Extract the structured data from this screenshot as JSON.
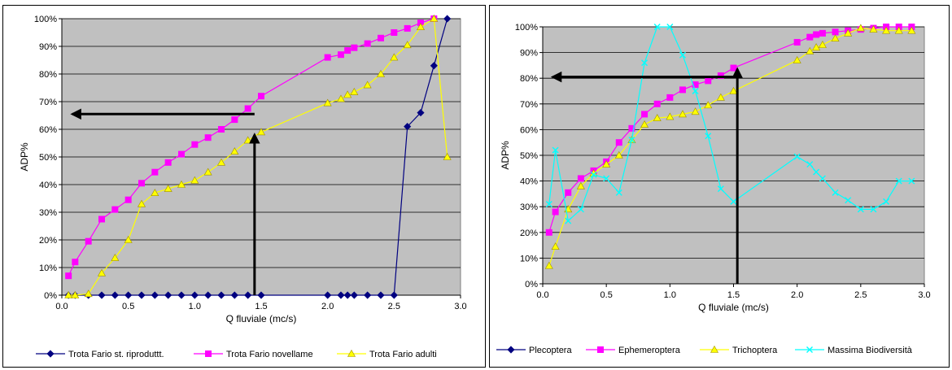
{
  "chart_data": [
    {
      "type": "line",
      "title": "",
      "xlabel": "Q fluviale (mc/s)",
      "ylabel": "ADP%",
      "xlim": [
        0,
        3
      ],
      "ylim": [
        0,
        100
      ],
      "x_ticks": [
        "0.0",
        "0.5",
        "1.0",
        "1.5",
        "2.0",
        "2.5",
        "3.0"
      ],
      "y_ticks": [
        "0%",
        "10%",
        "20%",
        "30%",
        "40%",
        "50%",
        "60%",
        "70%",
        "80%",
        "90%",
        "100%"
      ],
      "grid": true,
      "plot_background": "#c0c0c0",
      "legend_position": "bottom",
      "series": [
        {
          "name": "Trota Fario st. riproduttt.",
          "color": "#000080",
          "marker": "diamond",
          "points": [
            [
              0.05,
              0
            ],
            [
              0.1,
              0
            ],
            [
              0.2,
              0
            ],
            [
              0.3,
              0
            ],
            [
              0.4,
              0
            ],
            [
              0.5,
              0
            ],
            [
              0.6,
              0
            ],
            [
              0.7,
              0
            ],
            [
              0.8,
              0
            ],
            [
              0.9,
              0
            ],
            [
              1.0,
              0
            ],
            [
              1.1,
              0
            ],
            [
              1.2,
              0
            ],
            [
              1.3,
              0
            ],
            [
              1.4,
              0
            ],
            [
              1.5,
              0
            ],
            [
              2.0,
              0
            ],
            [
              2.1,
              0
            ],
            [
              2.15,
              0
            ],
            [
              2.2,
              0
            ],
            [
              2.3,
              0
            ],
            [
              2.4,
              0
            ],
            [
              2.5,
              0
            ],
            [
              2.6,
              61
            ],
            [
              2.7,
              66
            ],
            [
              2.8,
              83
            ],
            [
              2.9,
              100
            ]
          ]
        },
        {
          "name": "Trota Fario novellame",
          "color": "#ff00ff",
          "marker": "square",
          "points": [
            [
              0.05,
              7
            ],
            [
              0.1,
              12
            ],
            [
              0.2,
              19.5
            ],
            [
              0.3,
              27.5
            ],
            [
              0.4,
              31
            ],
            [
              0.5,
              34.5
            ],
            [
              0.6,
              40.5
            ],
            [
              0.7,
              44.5
            ],
            [
              0.8,
              48
            ],
            [
              0.9,
              51
            ],
            [
              1.0,
              54.5
            ],
            [
              1.1,
              57
            ],
            [
              1.2,
              60
            ],
            [
              1.3,
              63.5
            ],
            [
              1.4,
              67.5
            ],
            [
              1.5,
              72
            ],
            [
              2.0,
              86
            ],
            [
              2.1,
              87
            ],
            [
              2.15,
              88.5
            ],
            [
              2.2,
              89.5
            ],
            [
              2.3,
              91
            ],
            [
              2.4,
              93
            ],
            [
              2.5,
              95
            ],
            [
              2.6,
              96.5
            ],
            [
              2.7,
              98.5
            ],
            [
              2.8,
              100
            ]
          ]
        },
        {
          "name": "Trota Fario adulti",
          "color": "#ffff00",
          "marker": "triangle",
          "points": [
            [
              0.05,
              0
            ],
            [
              0.1,
              0
            ],
            [
              0.2,
              0.5
            ],
            [
              0.3,
              8
            ],
            [
              0.4,
              13.5
            ],
            [
              0.5,
              20
            ],
            [
              0.6,
              33
            ],
            [
              0.7,
              37
            ],
            [
              0.8,
              38.5
            ],
            [
              0.9,
              40
            ],
            [
              1.0,
              41.5
            ],
            [
              1.1,
              44.5
            ],
            [
              1.2,
              48
            ],
            [
              1.3,
              52
            ],
            [
              1.4,
              56
            ],
            [
              1.5,
              59
            ],
            [
              2.0,
              69.5
            ],
            [
              2.1,
              71
            ],
            [
              2.15,
              72.5
            ],
            [
              2.2,
              73.5
            ],
            [
              2.3,
              76
            ],
            [
              2.4,
              80
            ],
            [
              2.5,
              86
            ],
            [
              2.6,
              90.5
            ],
            [
              2.7,
              97
            ],
            [
              2.8,
              100
            ],
            [
              2.9,
              50
            ]
          ]
        }
      ],
      "annotation_arrows": [
        {
          "from": [
            1.45,
            0
          ],
          "to": [
            1.45,
            58
          ]
        },
        {
          "from": [
            1.45,
            65.5
          ],
          "to": [
            0.08,
            65.5
          ]
        }
      ]
    },
    {
      "type": "line",
      "title": "",
      "xlabel": "Q fluviale (mc/s)",
      "ylabel": "ADP%",
      "xlim": [
        0,
        3
      ],
      "ylim": [
        0,
        100
      ],
      "x_ticks": [
        "0.0",
        "0.5",
        "1.0",
        "1.5",
        "2.0",
        "2.5",
        "3.0"
      ],
      "y_ticks": [
        "0%",
        "10%",
        "20%",
        "30%",
        "40%",
        "50%",
        "60%",
        "70%",
        "80%",
        "90%",
        "100%"
      ],
      "grid": true,
      "plot_background": "#c0c0c0",
      "legend_position": "bottom",
      "series": [
        {
          "name": "Plecoptera",
          "color": "#000080",
          "marker": "diamond",
          "points": []
        },
        {
          "name": "Ephemeroptera",
          "color": "#ff00ff",
          "marker": "square",
          "points": [
            [
              0.05,
              20
            ],
            [
              0.1,
              28
            ],
            [
              0.2,
              35.5
            ],
            [
              0.3,
              41
            ],
            [
              0.4,
              44
            ],
            [
              0.5,
              47.5
            ],
            [
              0.6,
              55
            ],
            [
              0.7,
              60.5
            ],
            [
              0.8,
              66
            ],
            [
              0.9,
              70
            ],
            [
              1.0,
              72.5
            ],
            [
              1.1,
              75.5
            ],
            [
              1.2,
              77.5
            ],
            [
              1.3,
              79
            ],
            [
              1.4,
              81
            ],
            [
              1.5,
              84
            ],
            [
              2.0,
              94
            ],
            [
              2.1,
              96
            ],
            [
              2.15,
              97
            ],
            [
              2.2,
              97.5
            ],
            [
              2.3,
              98
            ],
            [
              2.4,
              98.5
            ],
            [
              2.5,
              99
            ],
            [
              2.6,
              99.5
            ],
            [
              2.7,
              100
            ],
            [
              2.8,
              100
            ],
            [
              2.9,
              100
            ]
          ]
        },
        {
          "name": "Trichoptera",
          "color": "#ffff00",
          "marker": "triangle",
          "points": [
            [
              0.05,
              7
            ],
            [
              0.1,
              14.5
            ],
            [
              0.2,
              29
            ],
            [
              0.3,
              38
            ],
            [
              0.4,
              43
            ],
            [
              0.5,
              46.5
            ],
            [
              0.6,
              50
            ],
            [
              0.7,
              56
            ],
            [
              0.8,
              62
            ],
            [
              0.9,
              64.5
            ],
            [
              1.0,
              65
            ],
            [
              1.1,
              66
            ],
            [
              1.2,
              67
            ],
            [
              1.3,
              69.5
            ],
            [
              1.4,
              72.5
            ],
            [
              1.5,
              75
            ],
            [
              2.0,
              87
            ],
            [
              2.1,
              90.5
            ],
            [
              2.15,
              92
            ],
            [
              2.2,
              93
            ],
            [
              2.3,
              95.5
            ],
            [
              2.4,
              97.5
            ],
            [
              2.5,
              99.5
            ],
            [
              2.6,
              99
            ],
            [
              2.7,
              98.5
            ],
            [
              2.8,
              98.5
            ],
            [
              2.9,
              98.5
            ]
          ]
        },
        {
          "name": "Massima Biodiversità",
          "color": "#00ffff",
          "marker": "x",
          "points": [
            [
              0.05,
              31
            ],
            [
              0.1,
              52
            ],
            [
              0.2,
              24.5
            ],
            [
              0.3,
              29
            ],
            [
              0.4,
              42.5
            ],
            [
              0.5,
              41
            ],
            [
              0.6,
              35.5
            ],
            [
              0.7,
              56
            ],
            [
              0.8,
              86
            ],
            [
              0.9,
              100
            ],
            [
              1.0,
              100
            ],
            [
              1.1,
              89
            ],
            [
              1.2,
              75
            ],
            [
              1.3,
              57.5
            ],
            [
              1.4,
              37
            ],
            [
              1.5,
              32
            ],
            [
              2.0,
              49.5
            ],
            [
              2.1,
              46.5
            ],
            [
              2.15,
              43.5
            ],
            [
              2.2,
              41
            ],
            [
              2.3,
              35.5
            ],
            [
              2.4,
              32.5
            ],
            [
              2.5,
              29
            ],
            [
              2.6,
              29
            ],
            [
              2.7,
              32
            ],
            [
              2.8,
              40
            ],
            [
              2.9,
              40
            ]
          ]
        }
      ],
      "annotation_arrows": [
        {
          "from": [
            1.53,
            0
          ],
          "to": [
            1.53,
            83.5
          ]
        },
        {
          "from": [
            1.53,
            80.5
          ],
          "to": [
            0.08,
            80.5
          ]
        }
      ]
    }
  ]
}
